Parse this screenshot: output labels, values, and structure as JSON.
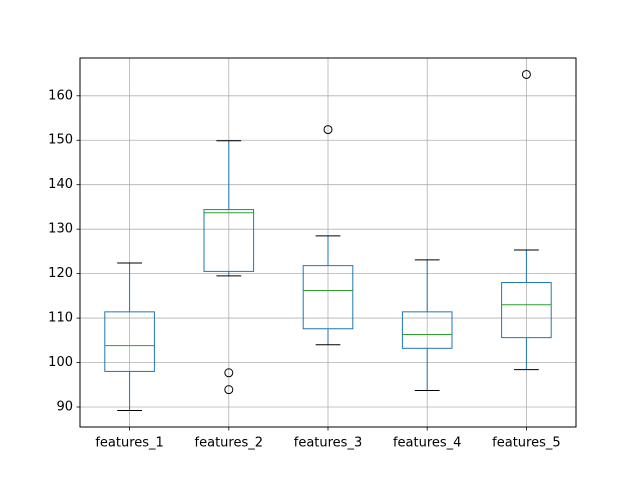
{
  "chart_data": {
    "type": "box",
    "title": "",
    "xlabel": "",
    "ylabel": "",
    "ylim": [
      85.5,
      168.5
    ],
    "grid": true,
    "yticks": [
      90,
      100,
      110,
      120,
      130,
      140,
      150,
      160
    ],
    "categories": [
      "features_1",
      "features_2",
      "features_3",
      "features_4",
      "features_5"
    ],
    "series": [
      {
        "category": "features_1",
        "whislo": 89.2,
        "q1": 98.0,
        "med": 103.8,
        "q3": 111.4,
        "whishi": 122.4,
        "fliers": []
      },
      {
        "category": "features_2",
        "whislo": 119.5,
        "q1": 120.5,
        "med": 133.7,
        "q3": 134.4,
        "whishi": 149.9,
        "fliers": [
          97.7,
          93.9
        ]
      },
      {
        "category": "features_3",
        "whislo": 104.0,
        "q1": 107.6,
        "med": 116.2,
        "q3": 121.8,
        "whishi": 128.5,
        "fliers": [
          152.4
        ]
      },
      {
        "category": "features_4",
        "whislo": 93.7,
        "q1": 103.2,
        "med": 106.3,
        "q3": 111.4,
        "whishi": 123.1,
        "fliers": []
      },
      {
        "category": "features_5",
        "whislo": 98.4,
        "q1": 105.6,
        "med": 113.0,
        "q3": 118.0,
        "whishi": 125.3,
        "fliers": [
          164.8
        ]
      }
    ],
    "colors": {
      "box": "#1f77b4",
      "median": "#2ca02c",
      "whisker": "#1f77b4",
      "cap": "#000000",
      "flier": "#000000",
      "grid": "#b0b0b0",
      "axes": "#000000"
    }
  }
}
